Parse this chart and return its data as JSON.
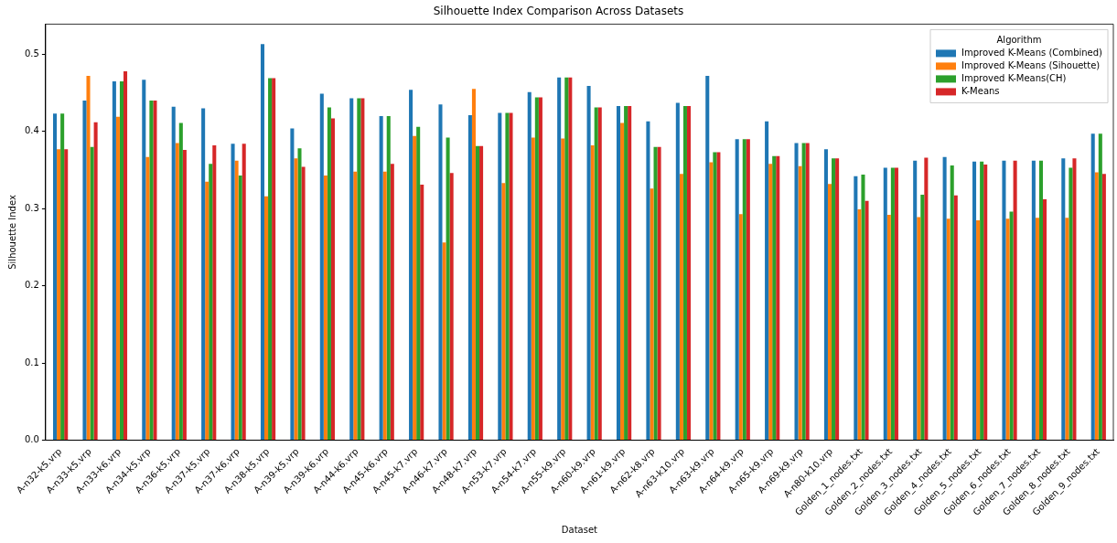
{
  "chart_data": {
    "type": "bar",
    "title": "Silhouette Index Comparison Across Datasets",
    "xlabel": "Dataset",
    "ylabel": "Silhouette Index",
    "legend_title": "Algorithm",
    "legend": "top right",
    "grid": false,
    "categories": [
      "A-n32-k5.vrp",
      "A-n33-k5.vrp",
      "A-n33-k6.vrp",
      "A-n34-k5.vrp",
      "A-n36-k5.vrp",
      "A-n37-k5.vrp",
      "A-n37-k6.vrp",
      "A-n38-k5.vrp",
      "A-n39-k5.vrp",
      "A-n39-k6.vrp",
      "A-n44-k6.vrp",
      "A-n45-k6.vrp",
      "A-n45-k7.vrp",
      "A-n46-k7.vrp",
      "A-n48-k7.vrp",
      "A-n53-k7.vrp",
      "A-n54-k7.vrp",
      "A-n55-k9.vrp",
      "A-n60-k9.vrp",
      "A-n61-k9.vrp",
      "A-n62-k8.vrp",
      "A-n63-k10.vrp",
      "A-n63-k9.vrp",
      "A-n64-k9.vrp",
      "A-n65-k9.vrp",
      "A-n69-k9.vrp",
      "A-n80-k10.vrp",
      "Golden_1_nodes.txt",
      "Golden_2_nodes.txt",
      "Golden_3_nodes.txt",
      "Golden_4_nodes.txt",
      "Golden_5_nodes.txt",
      "Golden_6_nodes.txt",
      "Golden_7_nodes.txt",
      "Golden_8_nodes.txt",
      "Golden_9_nodes.txt"
    ],
    "series": [
      {
        "name": "Improved K-Means (Combined)",
        "color": "#1f77b4",
        "values": [
          0.423,
          0.44,
          0.465,
          0.467,
          0.432,
          0.43,
          0.384,
          0.513,
          0.404,
          0.449,
          0.443,
          0.42,
          0.454,
          0.435,
          0.421,
          0.424,
          0.451,
          0.47,
          0.459,
          0.433,
          0.413,
          0.437,
          0.472,
          0.39,
          0.413,
          0.385,
          0.377,
          0.342,
          0.353,
          0.362,
          0.367,
          0.361,
          0.362,
          0.362,
          0.365,
          0.397
        ]
      },
      {
        "name": "Improved K-Means (Sihouette)",
        "color": "#ff7f0e",
        "values": [
          0.377,
          0.472,
          0.419,
          0.367,
          0.385,
          0.335,
          0.362,
          0.316,
          0.365,
          0.343,
          0.348,
          0.348,
          0.394,
          0.256,
          0.455,
          0.333,
          0.392,
          0.391,
          0.382,
          0.411,
          0.326,
          0.345,
          0.36,
          0.293,
          0.358,
          0.355,
          0.332,
          0.299,
          0.292,
          0.289,
          0.287,
          0.285,
          0.287,
          0.288,
          0.288,
          0.347
        ]
      },
      {
        "name": "Improved K-Means(CH)",
        "color": "#2ca02c",
        "values": [
          0.423,
          0.38,
          0.465,
          0.44,
          0.411,
          0.358,
          0.343,
          0.469,
          0.378,
          0.431,
          0.443,
          0.42,
          0.406,
          0.392,
          0.381,
          0.424,
          0.444,
          0.47,
          0.431,
          0.433,
          0.38,
          0.433,
          0.373,
          0.39,
          0.368,
          0.385,
          0.365,
          0.344,
          0.353,
          0.318,
          0.356,
          0.361,
          0.296,
          0.362,
          0.353,
          0.397
        ]
      },
      {
        "name": "K-Means",
        "color": "#d62728",
        "values": [
          0.377,
          0.412,
          0.478,
          0.44,
          0.376,
          0.382,
          0.384,
          0.469,
          0.354,
          0.417,
          0.443,
          0.358,
          0.331,
          0.346,
          0.381,
          0.424,
          0.444,
          0.47,
          0.431,
          0.433,
          0.38,
          0.433,
          0.373,
          0.39,
          0.368,
          0.385,
          0.365,
          0.31,
          0.353,
          0.366,
          0.317,
          0.357,
          0.362,
          0.312,
          0.365,
          0.345
        ]
      }
    ],
    "ylim": [
      0,
      0.539
    ],
    "yticks": [
      {
        "value": 0,
        "label": "0.0"
      },
      {
        "value": 0.1,
        "label": "0.1"
      },
      {
        "value": 0.2,
        "label": "0.2"
      },
      {
        "value": 0.3,
        "label": "0.3"
      },
      {
        "value": 0.4,
        "label": "0.4"
      },
      {
        "value": 0.5,
        "label": "0.5"
      }
    ]
  }
}
